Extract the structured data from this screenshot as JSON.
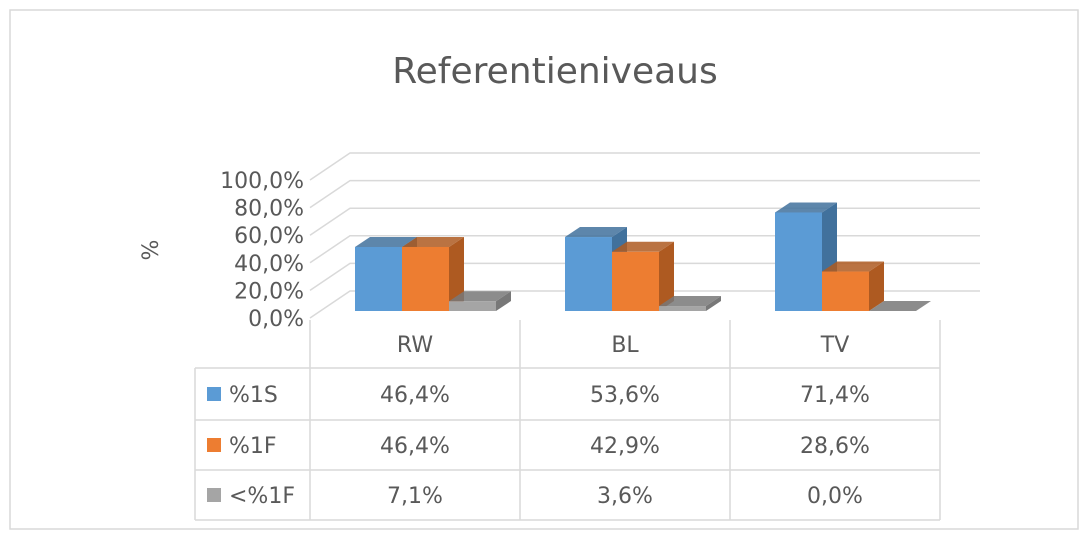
{
  "chart_data": {
    "type": "bar3d",
    "title": "Referentieniveaus",
    "y_label": "%",
    "categories": [
      "RW",
      "BL",
      "TV"
    ],
    "series": [
      {
        "name": "%1S",
        "color": "#5b9bd5",
        "side_color": "#41719c",
        "values": [
          46.4,
          53.6,
          71.4
        ],
        "value_labels": [
          "46,4%",
          "53,6%",
          "71,4%"
        ]
      },
      {
        "name": "%1F",
        "color": "#ed7d31",
        "side_color": "#ae5a21",
        "values": [
          46.4,
          42.9,
          28.6
        ],
        "value_labels": [
          "46,4%",
          "42,9%",
          "28,6%"
        ]
      },
      {
        "name": "<%1F",
        "color": "#a5a5a5",
        "side_color": "#787878",
        "values": [
          7.1,
          3.6,
          0.0
        ],
        "value_labels": [
          "7,1%",
          "3,6%",
          "0,0%"
        ]
      }
    ],
    "ylim": [
      0,
      100
    ],
    "yticks": [
      {
        "value": 0,
        "label": "0,0%"
      },
      {
        "value": 20,
        "label": "20,0%"
      },
      {
        "value": 40,
        "label": "40,0%"
      },
      {
        "value": 60,
        "label": "60,0%"
      },
      {
        "value": 80,
        "label": "80,0%"
      },
      {
        "value": 100,
        "label": "100,0%"
      }
    ],
    "grid": true
  }
}
